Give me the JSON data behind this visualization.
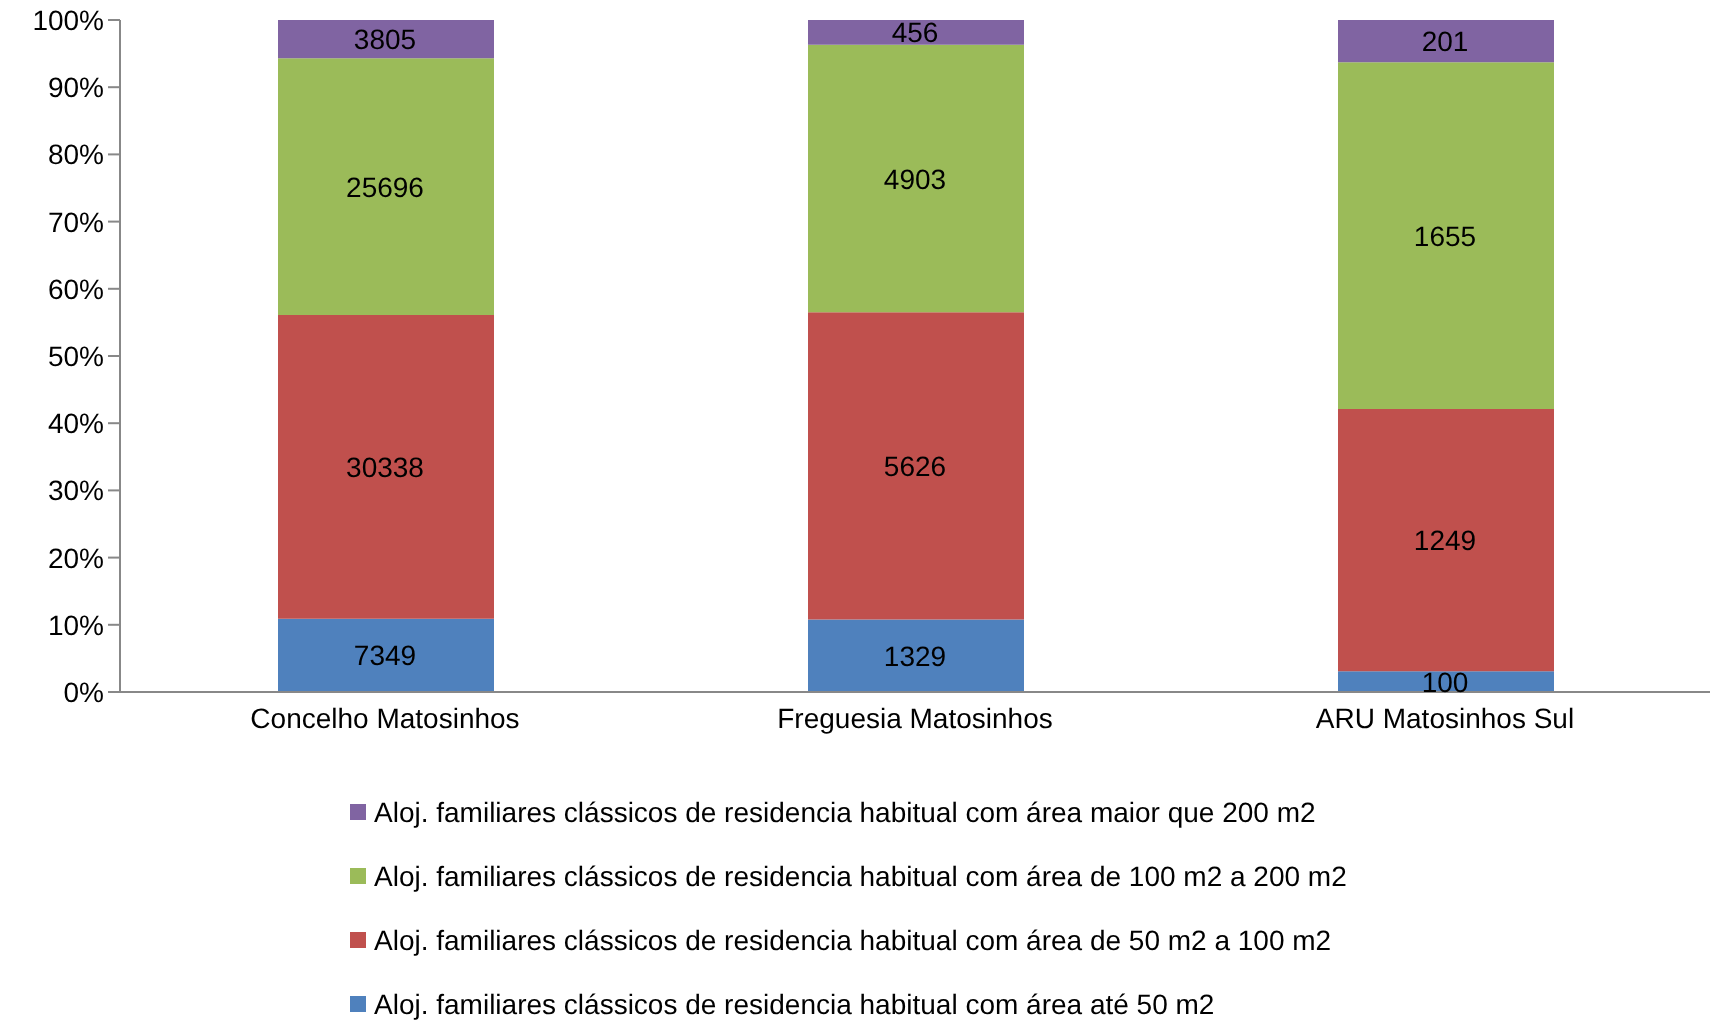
{
  "chart_data": {
    "type": "bar",
    "stacked": true,
    "categories": [
      "Concelho Matosinhos",
      "Freguesia Matosinhos",
      "ARU Matosinhos Sul"
    ],
    "series": [
      {
        "name": "Aloj. familiares clássicos de residencia habitual com área até 50 m2",
        "color": "#4f81bd",
        "values": [
          10.9,
          10.8,
          3.1
        ]
      },
      {
        "name": "Aloj. familiares clássicos de residencia habitual com área de 50 m2 a 100 m2",
        "color": "#c0504d",
        "values": [
          45.2,
          45.7,
          39.0
        ]
      },
      {
        "name": "Aloj. familiares clássicos de residencia habitual com área de 100 m2 a 200 m2",
        "color": "#9bbb59",
        "values": [
          38.2,
          39.8,
          51.6
        ]
      },
      {
        "name": "Aloj. familiares clássicos de residencia habitual com área maior que 200 m2",
        "color": "#8064a2",
        "values": [
          5.7,
          3.7,
          6.3
        ]
      }
    ],
    "annotations": [
      "7349",
      "30338",
      "25696",
      "3805",
      "1329",
      "5626",
      "4903",
      "456",
      "100",
      "1249",
      "1655",
      "201"
    ],
    "ylim": [
      0,
      100
    ],
    "yticks": [
      {
        "value": 0,
        "label": "0%"
      },
      {
        "value": 10,
        "label": "10%"
      },
      {
        "value": 20,
        "label": "20%"
      },
      {
        "value": 30,
        "label": "30%"
      },
      {
        "value": 40,
        "label": "40%"
      },
      {
        "value": 50,
        "label": "50%"
      },
      {
        "value": 60,
        "label": "60%"
      },
      {
        "value": 70,
        "label": "70%"
      },
      {
        "value": 80,
        "label": "80%"
      },
      {
        "value": 90,
        "label": "90%"
      },
      {
        "value": 100,
        "label": "100%"
      }
    ],
    "legend": "bottom"
  }
}
